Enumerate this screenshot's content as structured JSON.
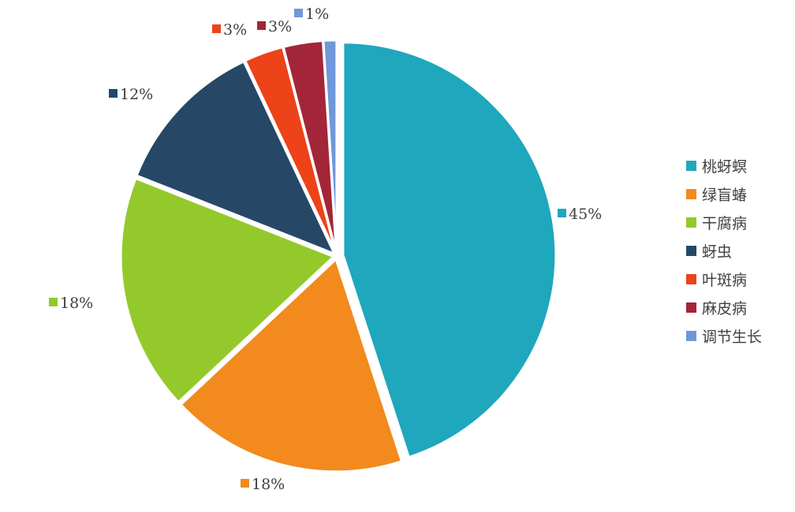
{
  "chart_data": {
    "type": "pie",
    "title": "",
    "legend_position": "right",
    "slices": [
      {
        "label": "桃蚜螟",
        "value": 45,
        "display": "45%",
        "color": "#1FA7BD"
      },
      {
        "label": "绿盲蝽",
        "value": 18,
        "display": "18%",
        "color": "#F28A1E"
      },
      {
        "label": "干腐病",
        "value": 18,
        "display": "18%",
        "color": "#93C92A"
      },
      {
        "label": "蚜虫",
        "value": 12,
        "display": "12%",
        "color": "#264866"
      },
      {
        "label": "叶斑病",
        "value": 3,
        "display": "3%",
        "color": "#EE4219"
      },
      {
        "label": "麻皮病",
        "value": 3,
        "display": "3%",
        "color": "#A32638"
      },
      {
        "label": "调节生长",
        "value": 1,
        "display": "1%",
        "color": "#6F97DA"
      }
    ]
  }
}
